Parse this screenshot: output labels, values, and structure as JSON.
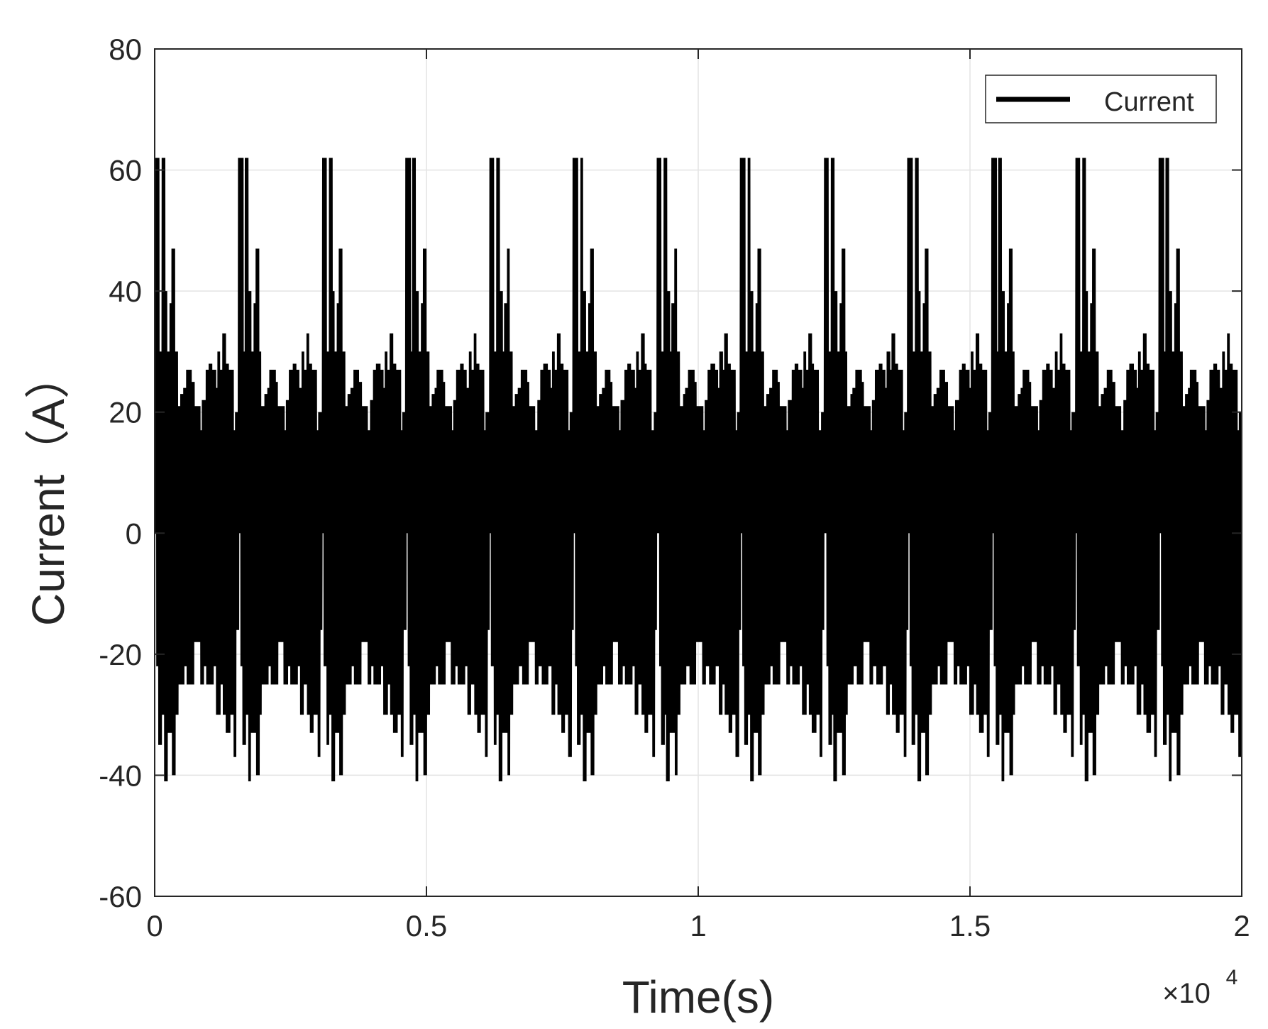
{
  "chart_data": {
    "type": "line",
    "title": "",
    "xlabel": "Time(s)",
    "ylabel": "Current（A）",
    "x_exponent_label": "×10",
    "x_exponent": "4",
    "xlim": [
      0,
      20000
    ],
    "ylim": [
      -60,
      80
    ],
    "x_ticks": [
      0,
      5000,
      10000,
      15000,
      20000
    ],
    "x_tick_labels": [
      "0",
      "0.5",
      "1",
      "1.5",
      "2"
    ],
    "y_ticks": [
      -60,
      -40,
      -20,
      0,
      20,
      40,
      60,
      80
    ],
    "y_tick_labels": [
      "-60",
      "-40",
      "-20",
      "0",
      "20",
      "40",
      "60",
      "80"
    ],
    "grid": true,
    "legend_position": "top-right",
    "line_color": "#000000",
    "period": 1540,
    "series": [
      {
        "name": "Current",
        "description_of_cycle": "periodic current waveform repeating every ~1540 s",
        "cycle_upper_envelope": [
          {
            "t": 0,
            "v": 62
          },
          {
            "t": 40,
            "v": 62
          },
          {
            "t": 80,
            "v": 30
          },
          {
            "t": 130,
            "v": 62
          },
          {
            "t": 180,
            "v": 40
          },
          {
            "t": 230,
            "v": 30
          },
          {
            "t": 280,
            "v": 38
          },
          {
            "t": 320,
            "v": 47
          },
          {
            "t": 370,
            "v": 30
          },
          {
            "t": 420,
            "v": 21
          },
          {
            "t": 480,
            "v": 23
          },
          {
            "t": 530,
            "v": 24
          },
          {
            "t": 580,
            "v": 27
          },
          {
            "t": 640,
            "v": 27
          },
          {
            "t": 680,
            "v": 25
          },
          {
            "t": 720,
            "v": 21
          },
          {
            "t": 780,
            "v": 21
          },
          {
            "t": 840,
            "v": 17
          },
          {
            "t": 880,
            "v": 22
          },
          {
            "t": 940,
            "v": 27
          },
          {
            "t": 1000,
            "v": 28
          },
          {
            "t": 1060,
            "v": 27
          },
          {
            "t": 1120,
            "v": 24
          },
          {
            "t": 1160,
            "v": 30
          },
          {
            "t": 1200,
            "v": 27
          },
          {
            "t": 1250,
            "v": 33
          },
          {
            "t": 1300,
            "v": 28
          },
          {
            "t": 1350,
            "v": 27
          },
          {
            "t": 1400,
            "v": 27
          },
          {
            "t": 1440,
            "v": 17
          },
          {
            "t": 1480,
            "v": 20
          },
          {
            "t": 1540,
            "v": 0
          }
        ],
        "cycle_lower_envelope": [
          {
            "t": 0,
            "v": 0
          },
          {
            "t": 40,
            "v": -22
          },
          {
            "t": 80,
            "v": -35
          },
          {
            "t": 130,
            "v": -30
          },
          {
            "t": 180,
            "v": -41
          },
          {
            "t": 230,
            "v": -33
          },
          {
            "t": 280,
            "v": -33
          },
          {
            "t": 330,
            "v": -40
          },
          {
            "t": 380,
            "v": -30
          },
          {
            "t": 430,
            "v": -25
          },
          {
            "t": 480,
            "v": -25
          },
          {
            "t": 540,
            "v": -22
          },
          {
            "t": 600,
            "v": -25
          },
          {
            "t": 660,
            "v": -25
          },
          {
            "t": 720,
            "v": -18
          },
          {
            "t": 780,
            "v": -18
          },
          {
            "t": 840,
            "v": -25
          },
          {
            "t": 900,
            "v": -22
          },
          {
            "t": 960,
            "v": -25
          },
          {
            "t": 1020,
            "v": -25
          },
          {
            "t": 1080,
            "v": -22
          },
          {
            "t": 1140,
            "v": -30
          },
          {
            "t": 1200,
            "v": -25
          },
          {
            "t": 1260,
            "v": -30
          },
          {
            "t": 1320,
            "v": -33
          },
          {
            "t": 1380,
            "v": -30
          },
          {
            "t": 1420,
            "v": -30
          },
          {
            "t": 1460,
            "v": -37
          },
          {
            "t": 1500,
            "v": -16
          },
          {
            "t": 1540,
            "v": 0
          }
        ]
      }
    ]
  }
}
